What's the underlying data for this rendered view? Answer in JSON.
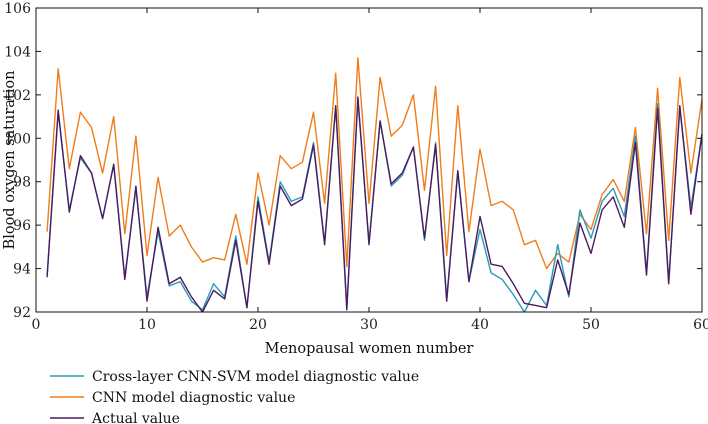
{
  "chart_data": {
    "type": "line",
    "title": "",
    "xlabel": "Menopausal women number",
    "ylabel": "Blood oxygen saturation",
    "xlim": [
      0,
      60
    ],
    "ylim": [
      92,
      106
    ],
    "xticks": [
      0,
      10,
      20,
      30,
      40,
      50,
      60
    ],
    "yticks": [
      92,
      94,
      96,
      98,
      100,
      102,
      104,
      106
    ],
    "grid": false,
    "legend_position": "bottom-left",
    "x": [
      1,
      2,
      3,
      4,
      5,
      6,
      7,
      8,
      9,
      10,
      11,
      12,
      13,
      14,
      15,
      16,
      17,
      18,
      19,
      20,
      21,
      22,
      23,
      24,
      25,
      26,
      27,
      28,
      29,
      30,
      31,
      32,
      33,
      34,
      35,
      36,
      37,
      38,
      39,
      40,
      41,
      42,
      43,
      44,
      45,
      46,
      47,
      48,
      49,
      50,
      51,
      52,
      53,
      54,
      55,
      56,
      57,
      58,
      59,
      60
    ],
    "series": [
      {
        "name": "Cross-layer CNN-SVM model diagnostic value",
        "color": "#2a9bb6",
        "values": [
          93.7,
          101.2,
          96.7,
          99.1,
          98.4,
          96.3,
          98.8,
          93.6,
          97.7,
          92.7,
          95.7,
          93.2,
          93.4,
          92.5,
          92.1,
          93.3,
          92.7,
          95.5,
          92.2,
          97.3,
          94.3,
          98.0,
          97.1,
          97.3,
          99.8,
          95.2,
          101.5,
          92.2,
          101.8,
          95.2,
          100.8,
          97.8,
          98.3,
          99.6,
          95.3,
          99.8,
          92.6,
          98.5,
          93.4,
          95.8,
          93.8,
          93.5,
          92.8,
          92.0,
          93.0,
          92.3,
          95.1,
          92.7,
          96.7,
          95.4,
          97.1,
          97.7,
          96.4,
          100.1,
          93.8,
          101.6,
          93.4,
          101.4,
          96.8,
          100.2
        ]
      },
      {
        "name": "CNN model diagnostic value",
        "color": "#f07d1b",
        "values": [
          95.7,
          103.2,
          98.6,
          101.2,
          100.5,
          98.4,
          101.0,
          95.6,
          100.1,
          94.6,
          98.2,
          95.5,
          96.0,
          95.0,
          94.3,
          94.5,
          94.4,
          96.5,
          94.2,
          98.4,
          96.0,
          99.2,
          98.6,
          98.9,
          101.2,
          97.0,
          103.0,
          94.1,
          103.7,
          97.0,
          102.8,
          100.1,
          100.6,
          102.0,
          97.6,
          102.4,
          94.6,
          101.5,
          95.7,
          99.5,
          96.9,
          97.1,
          96.7,
          95.1,
          95.3,
          94.0,
          94.7,
          94.3,
          96.5,
          95.8,
          97.4,
          98.1,
          97.1,
          100.5,
          95.6,
          102.3,
          95.3,
          102.8,
          98.4,
          101.8
        ]
      },
      {
        "name": "Actual value",
        "color": "#4d1b5f",
        "values": [
          93.6,
          101.3,
          96.6,
          99.2,
          98.4,
          96.3,
          98.8,
          93.5,
          97.8,
          92.5,
          95.9,
          93.3,
          93.6,
          92.7,
          92.0,
          93.0,
          92.6,
          95.3,
          92.2,
          97.1,
          94.2,
          97.8,
          96.9,
          97.2,
          99.7,
          95.1,
          101.5,
          92.1,
          101.9,
          95.1,
          100.8,
          97.9,
          98.4,
          99.6,
          95.4,
          99.7,
          92.5,
          98.5,
          93.4,
          96.4,
          94.2,
          94.1,
          93.3,
          92.4,
          92.3,
          92.2,
          94.4,
          92.8,
          96.1,
          94.7,
          96.7,
          97.3,
          95.9,
          99.8,
          93.7,
          101.4,
          93.3,
          101.5,
          96.5,
          100.2
        ]
      }
    ]
  }
}
